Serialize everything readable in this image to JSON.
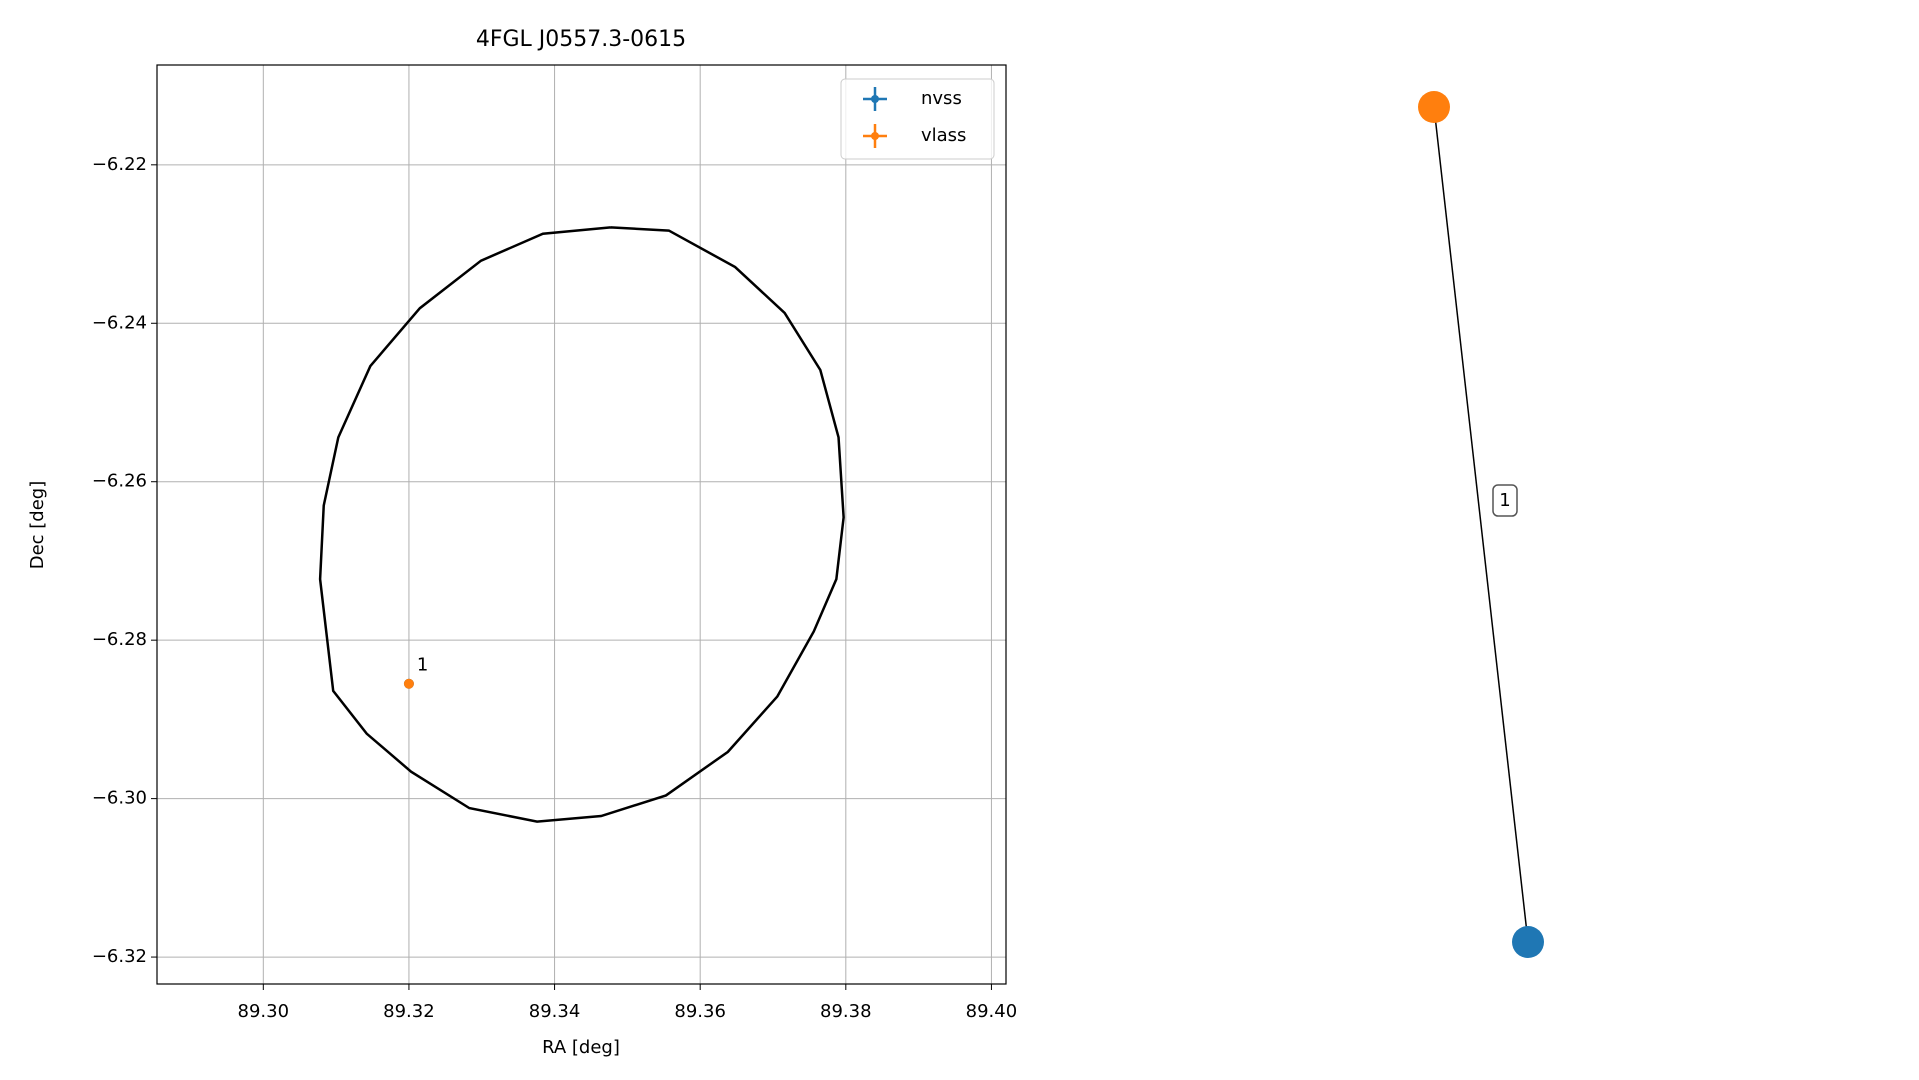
{
  "chart_data": {
    "type": "scatter",
    "title": "4FGL J0557.3-0615",
    "x_label": "RA [deg]",
    "y_label": "Dec [deg]",
    "xlim": [
      89.2854,
      89.402
    ],
    "ylim": [
      -6.3234,
      -6.2074
    ],
    "xticks": [
      {
        "value": 89.3,
        "label": "89.30"
      },
      {
        "value": 89.32,
        "label": "89.32"
      },
      {
        "value": 89.34,
        "label": "89.34"
      },
      {
        "value": 89.36,
        "label": "89.36"
      },
      {
        "value": 89.38,
        "label": "89.38"
      },
      {
        "value": 89.4,
        "label": "89.40"
      }
    ],
    "yticks": [
      {
        "value": -6.22,
        "label": "−6.22"
      },
      {
        "value": -6.24,
        "label": "−6.24"
      },
      {
        "value": -6.26,
        "label": "−6.26"
      },
      {
        "value": -6.28,
        "label": "−6.28"
      },
      {
        "value": -6.3,
        "label": "−6.30"
      },
      {
        "value": -6.32,
        "label": "−6.32"
      }
    ],
    "grid": true,
    "legend": "upper right",
    "series": [
      {
        "name": "nvss",
        "color": "#1f77b4",
        "x": [
          89.32
        ],
        "values": [
          -6.2855
        ]
      },
      {
        "name": "vlass",
        "color": "#ff7f0e",
        "x": [
          89.32
        ],
        "values": [
          -6.2855
        ]
      }
    ],
    "annotations": [
      {
        "text": "1",
        "x": 89.32,
        "y": -6.2855
      }
    ],
    "ellipse": {
      "color": "#000000",
      "x": [
        89.3477,
        89.3557,
        89.3648,
        89.3716,
        89.3765,
        89.379,
        89.3797,
        89.3787,
        89.3756,
        89.3706,
        89.3638,
        89.3553,
        89.3464,
        89.3376,
        89.3283,
        89.3203,
        89.3142,
        89.3096,
        89.3078,
        89.3083,
        89.3103,
        89.3147,
        89.3215,
        89.3299,
        89.3384,
        89.3477
      ],
      "y": [
        -6.2279,
        -6.2283,
        -6.2329,
        -6.2387,
        -6.2459,
        -6.2544,
        -6.2645,
        -6.2723,
        -6.2789,
        -6.2871,
        -6.2941,
        -6.2996,
        -6.3022,
        -6.3029,
        -6.3012,
        -6.2966,
        -6.2918,
        -6.2864,
        -6.2723,
        -6.263,
        -6.2544,
        -6.2454,
        -6.2381,
        -6.2321,
        -6.2287,
        -6.2279
      ]
    }
  },
  "graph": {
    "edges": [
      {
        "label": "1"
      }
    ]
  }
}
